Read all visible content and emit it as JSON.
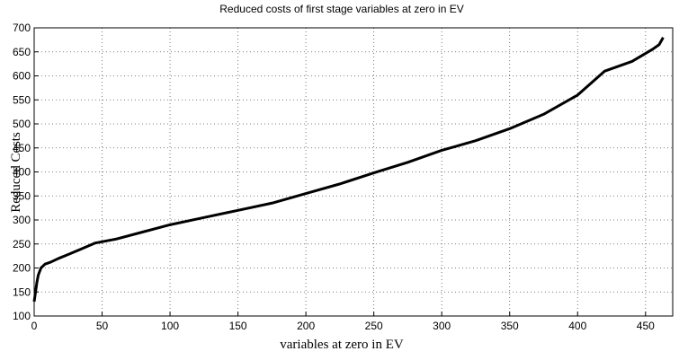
{
  "chart_data": {
    "type": "line",
    "title": "Reduced costs of first stage variables at zero in EV",
    "x_label": "variables at zero in EV",
    "y_label": "Reduced Costs",
    "x": [
      0,
      1,
      2,
      3,
      5,
      8,
      12,
      18,
      25,
      35,
      45,
      60,
      80,
      100,
      125,
      150,
      175,
      200,
      225,
      250,
      275,
      300,
      325,
      350,
      375,
      400,
      420,
      440,
      455,
      460,
      463
    ],
    "series": [
      {
        "name": "Reduced Costs",
        "color": "#000000",
        "values": [
          130,
          150,
          170,
          185,
          200,
          208,
          212,
          220,
          228,
          240,
          252,
          260,
          275,
          290,
          305,
          320,
          335,
          355,
          375,
          398,
          420,
          445,
          465,
          490,
          520,
          560,
          610,
          630,
          655,
          665,
          680
        ]
      }
    ],
    "xlim": [
      0,
      470
    ],
    "ylim": [
      100,
      700
    ],
    "xticks": [
      0,
      50,
      100,
      150,
      200,
      250,
      300,
      350,
      400,
      450
    ],
    "yticks": [
      100,
      150,
      200,
      250,
      300,
      350,
      400,
      450,
      500,
      550,
      600,
      650,
      700
    ],
    "grid": true
  }
}
